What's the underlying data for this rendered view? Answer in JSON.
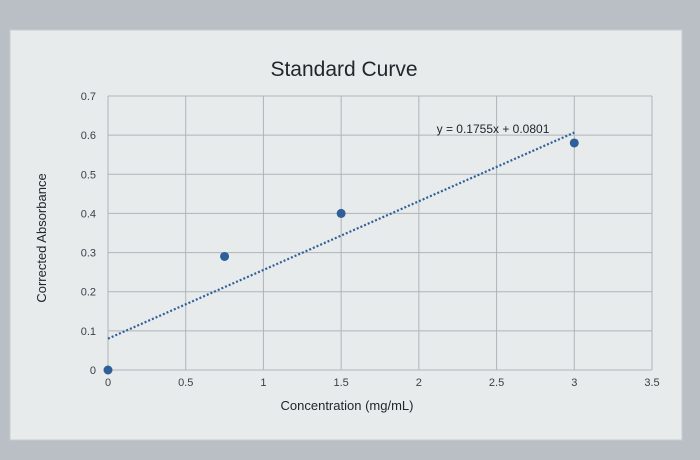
{
  "chart_data": {
    "type": "scatter",
    "title": "Standard Curve",
    "xlabel": "Concentration (mg/mL)",
    "ylabel": "Corrected Absorbance",
    "xlim": [
      0,
      3.5
    ],
    "ylim": [
      0,
      0.7
    ],
    "x_ticks": [
      "0",
      "0.5",
      "1",
      "1.5",
      "2",
      "2.5",
      "3",
      "3.5"
    ],
    "y_ticks": [
      "0",
      "0.1",
      "0.2",
      "0.3",
      "0.4",
      "0.5",
      "0.6",
      "0.7"
    ],
    "grid": true,
    "points": [
      {
        "x": 0,
        "y": 0
      },
      {
        "x": 0.75,
        "y": 0.29
      },
      {
        "x": 1.5,
        "y": 0.4
      },
      {
        "x": 3.0,
        "y": 0.58
      }
    ],
    "trendline": {
      "type": "linear",
      "slope": 0.1755,
      "intercept": 0.0801,
      "equation": "y = 0.1755x + 0.0801"
    },
    "colors": {
      "marker": "#2f5f99",
      "trendline": "#2f5f99",
      "gridline": "#aeb4b9",
      "background": "#e8ebec"
    }
  }
}
